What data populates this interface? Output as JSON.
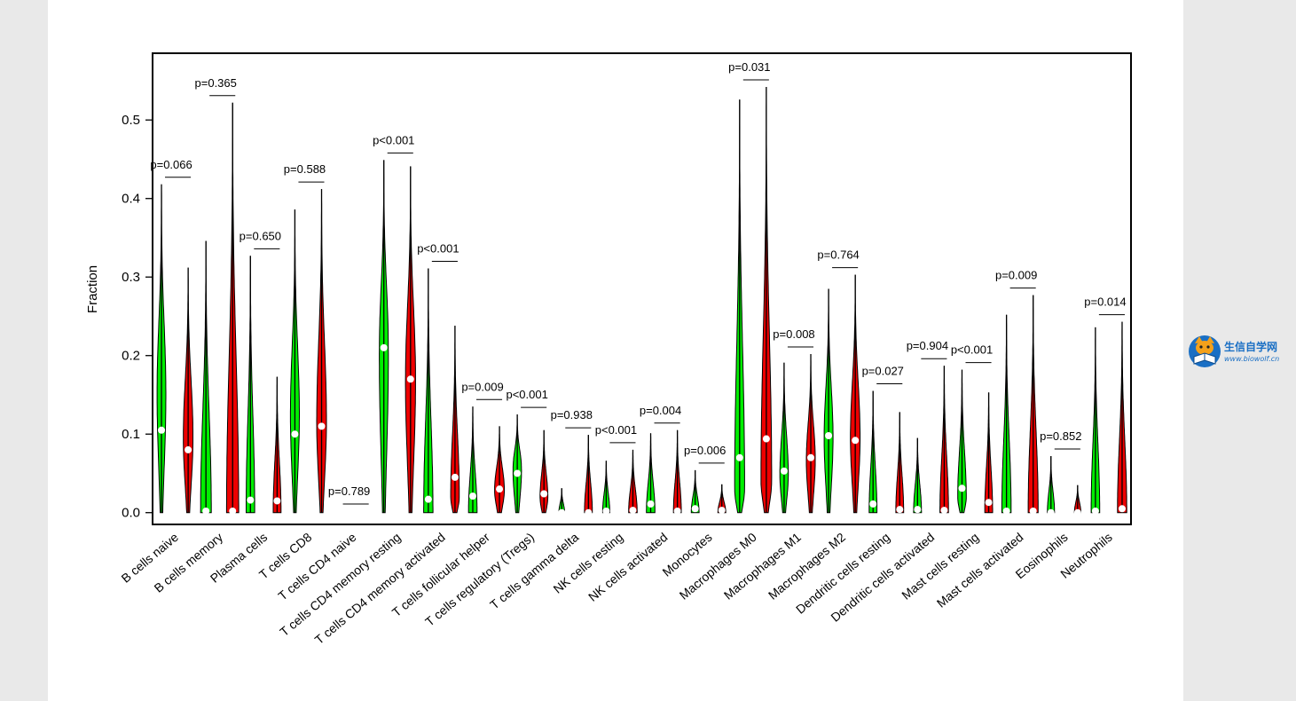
{
  "chart_data": {
    "type": "violin",
    "title": "",
    "xlabel": "",
    "ylabel": "Fraction",
    "ylim": [
      -0.015,
      0.585
    ],
    "yticks": [
      "0.0",
      "0.1",
      "0.2",
      "0.3",
      "0.4",
      "0.5"
    ],
    "ytick_values": [
      0,
      0.1,
      0.2,
      0.3,
      0.4,
      0.5
    ],
    "grid": false,
    "legend": "none",
    "series_colors": [
      "#00ee00",
      "#ee0000"
    ],
    "categories": [
      "B cells naive",
      "B cells memory",
      "Plasma cells",
      "T cells CD8",
      "T cells CD4 naive",
      "T cells CD4 memory resting",
      "T cells CD4 memory activated",
      "T cells follicular helper",
      "T cells regulatory (Tregs)",
      "T cells gamma delta",
      "NK cells resting",
      "NK cells activated",
      "Monocytes",
      "Macrophages M0",
      "Macrophages M1",
      "Macrophages M2",
      "Dendritic cells resting",
      "Dendritic cells activated",
      "Mast cells resting",
      "Mast cells activated",
      "Eosinophils",
      "Neutrophils"
    ],
    "pvalues": [
      "p=0.066",
      "p=0.365",
      "p=0.650",
      "p=0.588",
      "p=0.789",
      "p<0.001",
      "p<0.001",
      "p=0.009",
      "p<0.001",
      "p=0.938",
      "p<0.001",
      "p=0.004",
      "p=0.006",
      "p=0.031",
      "p=0.008",
      "p=0.764",
      "p=0.027",
      "p=0.904",
      "p<0.001",
      "p=0.009",
      "p=0.852",
      "p=0.014"
    ],
    "violins": [
      [
        {
          "max": 0.418,
          "median": 0.105,
          "mode": 0.16,
          "w": 0.65
        },
        {
          "max": 0.312,
          "median": 0.08,
          "mode": 0.1,
          "w": 0.7
        }
      ],
      [
        {
          "max": 0.346,
          "median": 0.002,
          "mode": 0.0,
          "w": 0.75
        },
        {
          "max": 0.522,
          "median": 0.002,
          "mode": 0.0,
          "w": 0.85
        }
      ],
      [
        {
          "max": 0.327,
          "median": 0.016,
          "mode": 0.0,
          "w": 0.6
        },
        {
          "max": 0.173,
          "median": 0.015,
          "mode": 0.0,
          "w": 0.55
        }
      ],
      [
        {
          "max": 0.386,
          "median": 0.1,
          "mode": 0.13,
          "w": 0.65
        },
        {
          "max": 0.412,
          "median": 0.11,
          "mode": 0.12,
          "w": 0.7
        }
      ],
      [
        {
          "max": 0.002,
          "median": 0.0,
          "mode": 0.0,
          "w": 0.3
        },
        {
          "max": 0.002,
          "median": 0.0,
          "mode": 0.0,
          "w": 0.3
        }
      ],
      [
        {
          "max": 0.449,
          "median": 0.21,
          "mode": 0.22,
          "w": 0.7
        },
        {
          "max": 0.441,
          "median": 0.17,
          "mode": 0.18,
          "w": 0.75
        }
      ],
      [
        {
          "max": 0.311,
          "median": 0.017,
          "mode": 0.0,
          "w": 0.65
        },
        {
          "max": 0.238,
          "median": 0.045,
          "mode": 0.02,
          "w": 0.6
        }
      ],
      [
        {
          "max": 0.135,
          "median": 0.021,
          "mode": 0.0,
          "w": 0.6
        },
        {
          "max": 0.11,
          "median": 0.03,
          "mode": 0.03,
          "w": 0.7
        }
      ],
      [
        {
          "max": 0.125,
          "median": 0.05,
          "mode": 0.06,
          "w": 0.65
        },
        {
          "max": 0.105,
          "median": 0.024,
          "mode": 0.02,
          "w": 0.55
        }
      ],
      [
        {
          "max": 0.031,
          "median": 0.0,
          "mode": 0.0,
          "w": 0.4
        },
        {
          "max": 0.099,
          "median": 0.0,
          "mode": 0.0,
          "w": 0.55
        }
      ],
      [
        {
          "max": 0.066,
          "median": 0.002,
          "mode": 0.0,
          "w": 0.5
        },
        {
          "max": 0.08,
          "median": 0.003,
          "mode": 0.0,
          "w": 0.6
        }
      ],
      [
        {
          "max": 0.101,
          "median": 0.011,
          "mode": 0.0,
          "w": 0.6
        },
        {
          "max": 0.105,
          "median": 0.002,
          "mode": 0.0,
          "w": 0.55
        }
      ],
      [
        {
          "max": 0.054,
          "median": 0.005,
          "mode": 0.0,
          "w": 0.55
        },
        {
          "max": 0.036,
          "median": 0.003,
          "mode": 0.0,
          "w": 0.55
        }
      ],
      [
        {
          "max": 0.526,
          "median": 0.07,
          "mode": 0.03,
          "w": 0.7
        },
        {
          "max": 0.542,
          "median": 0.094,
          "mode": 0.04,
          "w": 0.75
        }
      ],
      [
        {
          "max": 0.191,
          "median": 0.053,
          "mode": 0.05,
          "w": 0.6
        },
        {
          "max": 0.202,
          "median": 0.07,
          "mode": 0.07,
          "w": 0.65
        }
      ],
      [
        {
          "max": 0.285,
          "median": 0.098,
          "mode": 0.1,
          "w": 0.65
        },
        {
          "max": 0.303,
          "median": 0.092,
          "mode": 0.1,
          "w": 0.7
        }
      ],
      [
        {
          "max": 0.155,
          "median": 0.011,
          "mode": 0.0,
          "w": 0.55
        },
        {
          "max": 0.128,
          "median": 0.004,
          "mode": 0.0,
          "w": 0.55
        }
      ],
      [
        {
          "max": 0.095,
          "median": 0.004,
          "mode": 0.0,
          "w": 0.55
        },
        {
          "max": 0.187,
          "median": 0.003,
          "mode": 0.0,
          "w": 0.6
        }
      ],
      [
        {
          "max": 0.182,
          "median": 0.031,
          "mode": 0.02,
          "w": 0.6
        },
        {
          "max": 0.153,
          "median": 0.013,
          "mode": 0.0,
          "w": 0.55
        }
      ],
      [
        {
          "max": 0.252,
          "median": 0.002,
          "mode": 0.0,
          "w": 0.65
        },
        {
          "max": 0.277,
          "median": 0.002,
          "mode": 0.0,
          "w": 0.7
        }
      ],
      [
        {
          "max": 0.072,
          "median": 0.0,
          "mode": 0.0,
          "w": 0.5
        },
        {
          "max": 0.035,
          "median": 0.0,
          "mode": 0.0,
          "w": 0.45
        }
      ],
      [
        {
          "max": 0.236,
          "median": 0.002,
          "mode": 0.0,
          "w": 0.6
        },
        {
          "max": 0.243,
          "median": 0.005,
          "mode": 0.0,
          "w": 0.65
        }
      ]
    ]
  },
  "watermark": {
    "name_cn": "生信自学网",
    "url": "www.biowolf.cn",
    "logo": "wolf-book-icon"
  }
}
